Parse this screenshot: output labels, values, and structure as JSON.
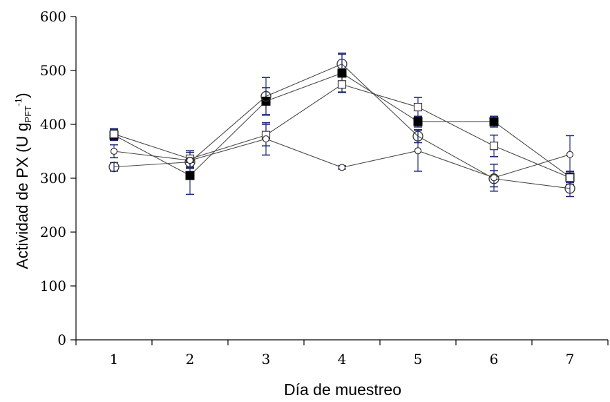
{
  "chart_data": {
    "type": "line",
    "xlabel": "Día de muestreo",
    "ylabel": {
      "main": "Actividad de PX (U g",
      "sub": "PFT",
      "sup": "-1",
      "close": ")"
    },
    "categories": [
      "1",
      "2",
      "3",
      "4",
      "5",
      "6",
      "7"
    ],
    "ylim": [
      0,
      600
    ],
    "yticks": [
      "0",
      "100",
      "200",
      "300",
      "400",
      "500",
      "600"
    ],
    "grid": false,
    "series": [
      {
        "marker": "filled-square",
        "values": [
          380,
          305,
          443,
          495,
          405,
          405,
          302
        ],
        "errors": [
          10,
          35,
          25,
          35,
          10,
          10,
          10
        ]
      },
      {
        "marker": "open-square",
        "values": [
          382,
          336,
          380,
          474,
          432,
          360,
          301
        ],
        "errors": [
          10,
          15,
          20,
          15,
          18,
          20,
          12
        ]
      },
      {
        "marker": "open-circle",
        "values": [
          321,
          330,
          452,
          512,
          378,
          299,
          281
        ],
        "errors": [
          8,
          10,
          35,
          20,
          12,
          15,
          15
        ]
      },
      {
        "marker": "small-circle",
        "values": [
          350,
          333,
          373,
          320,
          351,
          301,
          344
        ],
        "errors": [
          12,
          15,
          30,
          3,
          38,
          25,
          35
        ]
      }
    ],
    "colors": {
      "axis": "#000000",
      "line": "#4a4a4a",
      "errorbar": "#1f2a7a"
    }
  }
}
